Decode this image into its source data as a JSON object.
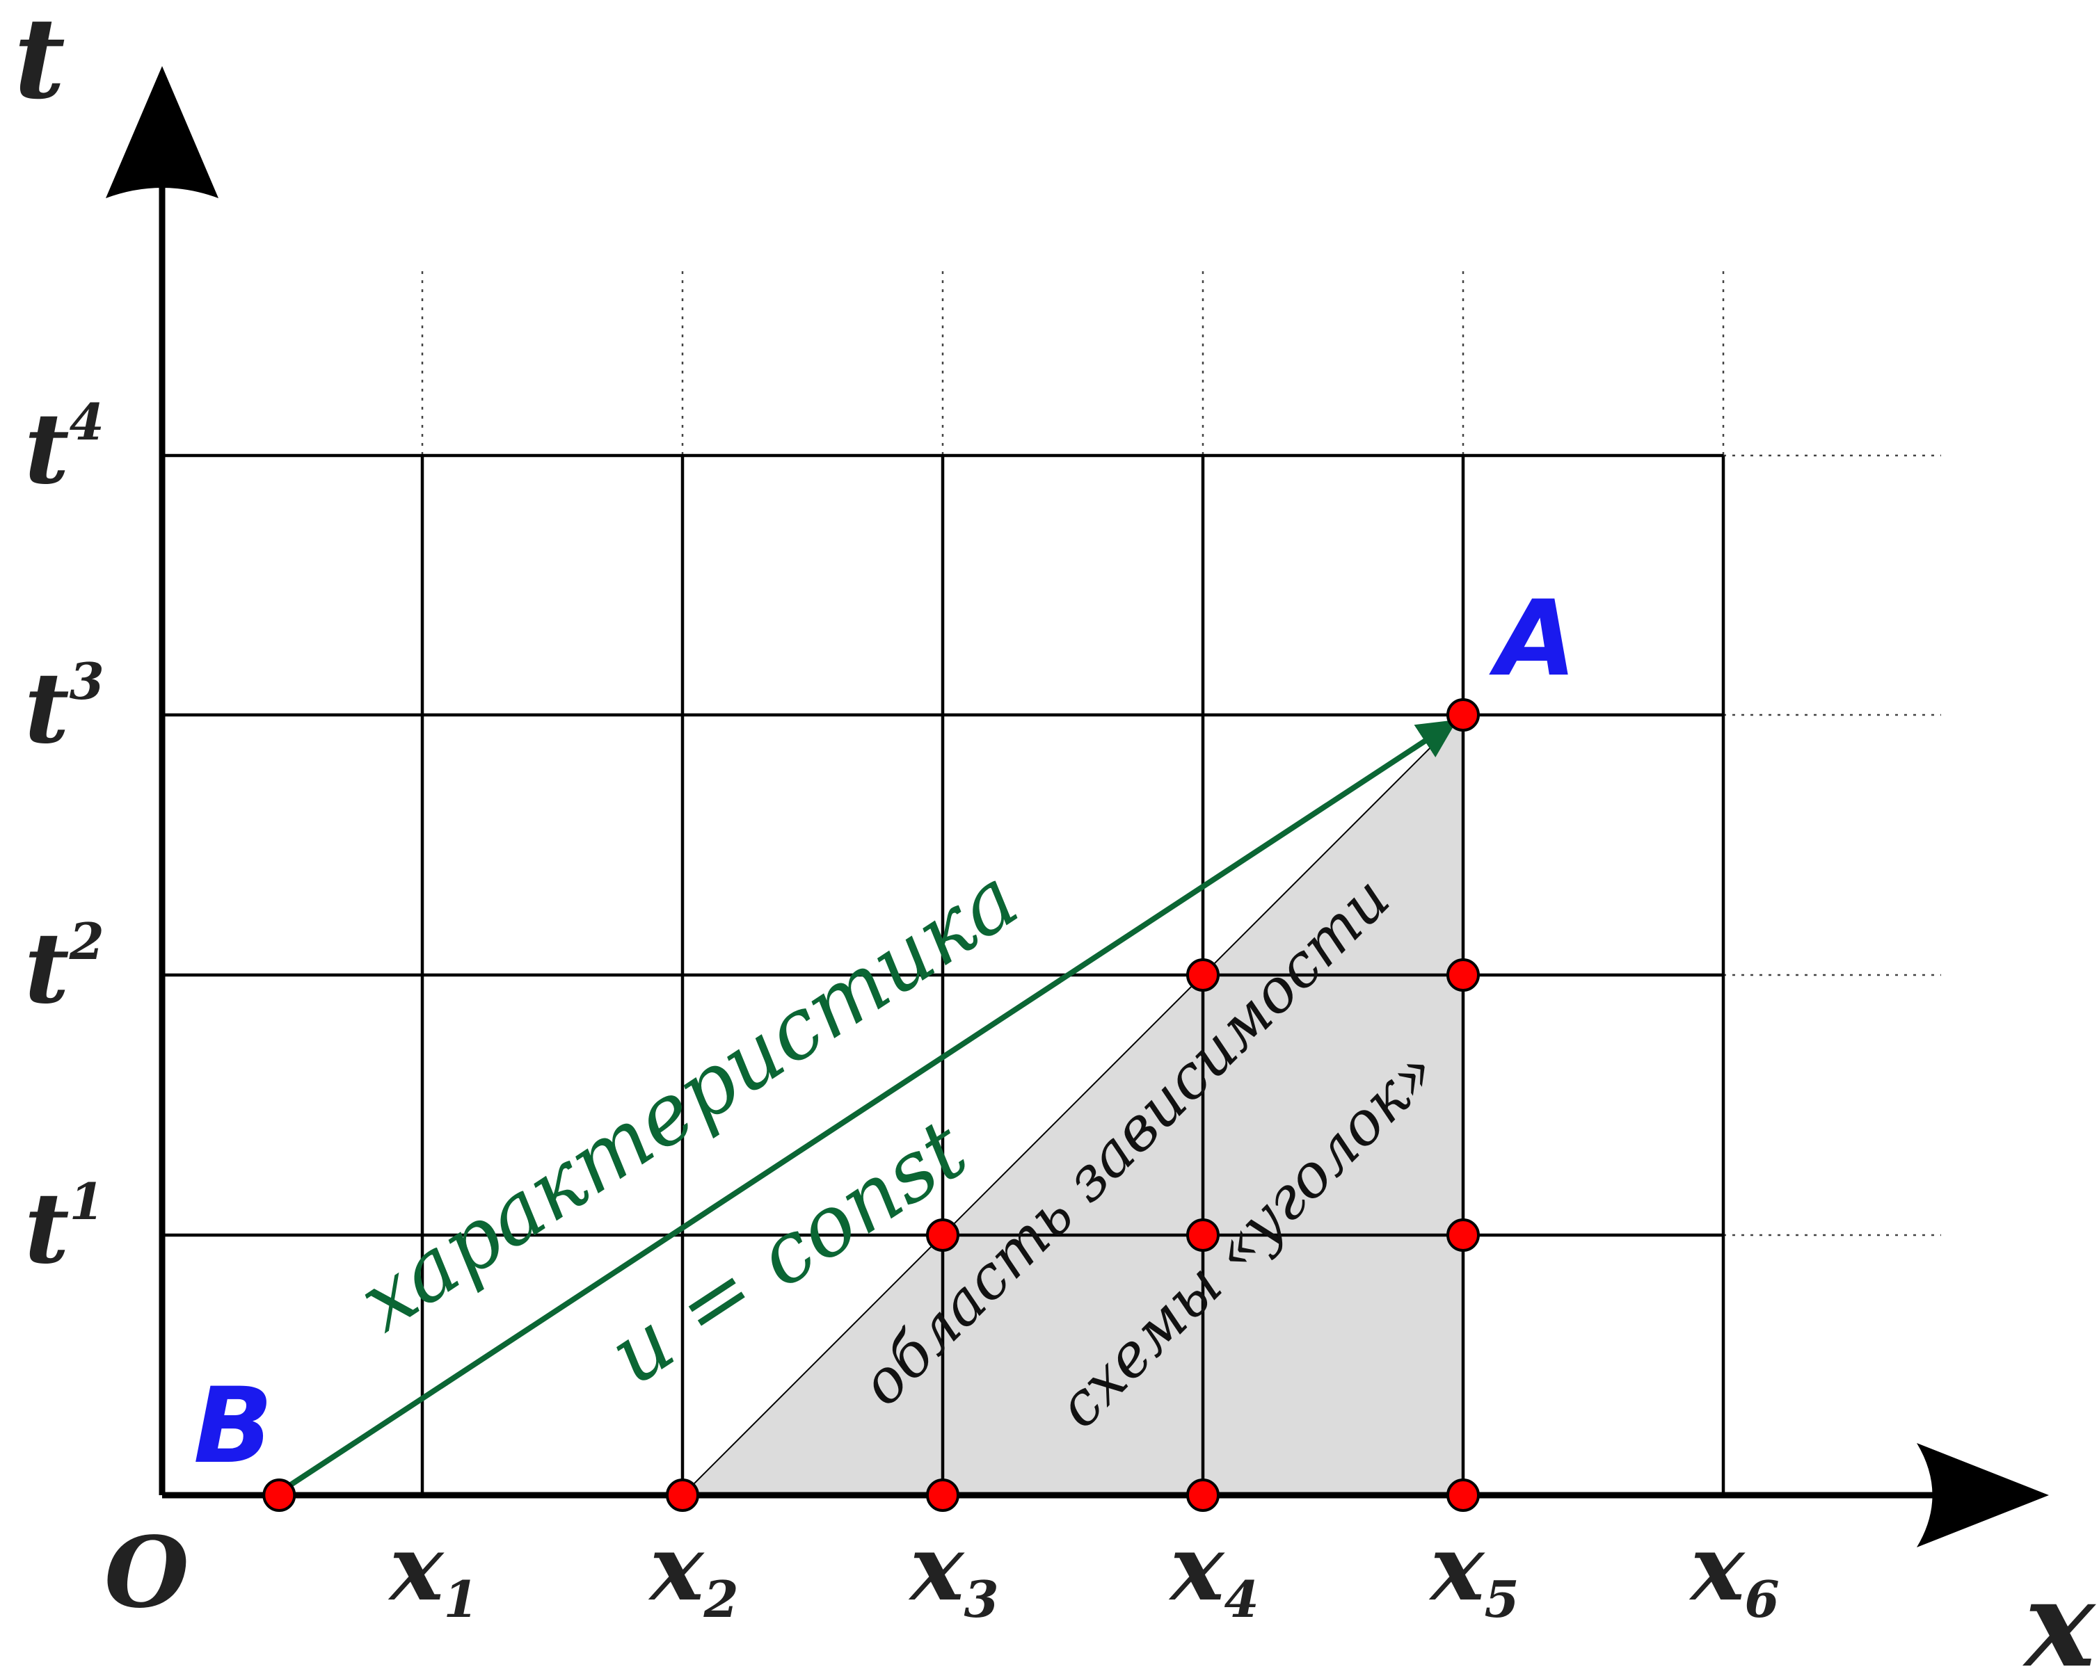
{
  "axes": {
    "x_label": "x",
    "t_label": "t",
    "origin_label": "O"
  },
  "x_ticks": [
    {
      "base": "x",
      "sub": "1"
    },
    {
      "base": "x",
      "sub": "2"
    },
    {
      "base": "x",
      "sub": "3"
    },
    {
      "base": "x",
      "sub": "4"
    },
    {
      "base": "x",
      "sub": "5"
    },
    {
      "base": "x",
      "sub": "6"
    }
  ],
  "t_ticks": [
    {
      "base": "t",
      "sup": "1"
    },
    {
      "base": "t",
      "sup": "2"
    },
    {
      "base": "t",
      "sup": "3"
    },
    {
      "base": "t",
      "sup": "4"
    }
  ],
  "points": {
    "A": "A",
    "B": "B"
  },
  "annotations": {
    "characteristic": "характеристика",
    "u_const": "u = const",
    "domain_line1": "область зависимости",
    "domain_line2": "схемы «уголок»"
  },
  "nodes": [
    {
      "x": 0.45,
      "t": 0
    },
    {
      "x": 2,
      "t": 0
    },
    {
      "x": 3,
      "t": 0
    },
    {
      "x": 4,
      "t": 0
    },
    {
      "x": 5,
      "t": 0
    },
    {
      "x": 3,
      "t": 1
    },
    {
      "x": 4,
      "t": 1
    },
    {
      "x": 5,
      "t": 1
    },
    {
      "x": 4,
      "t": 2
    },
    {
      "x": 5,
      "t": 2
    },
    {
      "x": 5,
      "t": 3
    }
  ],
  "colors": {
    "grid": "#000000",
    "node_fill": "#ff0000",
    "characteristic": "#0b6634",
    "point_label": "#1a1aee",
    "domain_fill": "#dcdcdc"
  }
}
